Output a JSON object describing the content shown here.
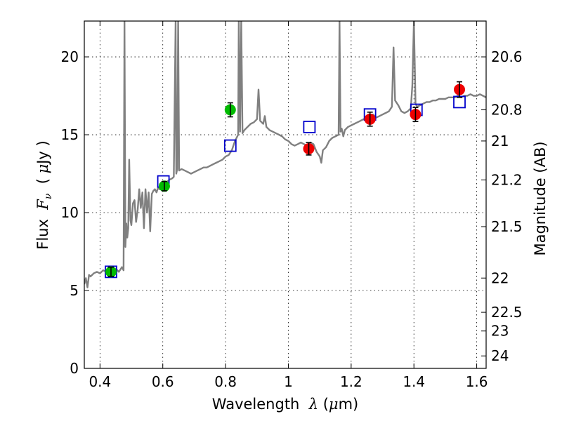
{
  "chart_data": {
    "type": "scatter",
    "title": "",
    "xlabel": "Wavelength  λ (μm)",
    "xlabel_parts": [
      "Wavelength  ",
      "λ",
      " (",
      "μ",
      "m)"
    ],
    "ylabel": "Flux  F_ν  ( μJy )",
    "ylabel_parts": [
      "Flux  ",
      "F",
      "ν",
      "  ( ",
      "μ",
      "Jy )"
    ],
    "ylabel_right": "Magnitude (AB)",
    "xlim": [
      0.35,
      1.63
    ],
    "ylim": [
      0,
      22.3
    ],
    "x_ticks": [
      0.4,
      0.6,
      0.8,
      1.0,
      1.2,
      1.4,
      1.6
    ],
    "x_tick_labels": [
      "0.4",
      "0.6",
      "0.8",
      "1",
      "1.2",
      "1.4",
      "1.6"
    ],
    "y_ticks": [
      0,
      5,
      10,
      15,
      20
    ],
    "y_tick_labels": [
      "0",
      "5",
      "10",
      "15",
      "20"
    ],
    "right_ticks": [
      {
        "label": "20.6",
        "flux": 20.0
      },
      {
        "label": "20.8",
        "flux": 16.6
      },
      {
        "label": "21",
        "flux": 14.6
      },
      {
        "label": "21.2",
        "flux": 12.1
      },
      {
        "label": "21.5",
        "flux": 9.1
      },
      {
        "label": "22",
        "flux": 5.8
      },
      {
        "label": "22.5",
        "flux": 3.6
      },
      {
        "label": "23",
        "flux": 2.4
      },
      {
        "label": "24",
        "flux": 0.8
      }
    ],
    "grid": true,
    "colors": {
      "model": "#808080",
      "model_photometry": "#0000cc",
      "optical_points": "#00bb00",
      "nir_points": "#ee0000",
      "error_bar": "#000000"
    },
    "series": [
      {
        "kind": "line",
        "points": [
          [
            0.35,
            5.4
          ],
          [
            0.355,
            5.8
          ],
          [
            0.36,
            5.2
          ],
          [
            0.365,
            6.0
          ],
          [
            0.37,
            5.9
          ],
          [
            0.38,
            6.1
          ],
          [
            0.39,
            6.2
          ],
          [
            0.4,
            6.1
          ],
          [
            0.41,
            6.3
          ],
          [
            0.42,
            6.2
          ],
          [
            0.43,
            6.4
          ],
          [
            0.44,
            6.3
          ],
          [
            0.45,
            6.4
          ],
          [
            0.46,
            6.2
          ],
          [
            0.47,
            6.5
          ],
          [
            0.475,
            6.3
          ],
          [
            0.478,
            22.3
          ],
          [
            0.481,
            7.8
          ],
          [
            0.484,
            9.3
          ],
          [
            0.487,
            8.4
          ],
          [
            0.49,
            9.0
          ],
          [
            0.493,
            13.4
          ],
          [
            0.497,
            9.5
          ],
          [
            0.5,
            9.2
          ],
          [
            0.505,
            10.6
          ],
          [
            0.51,
            10.8
          ],
          [
            0.515,
            9.4
          ],
          [
            0.52,
            10.2
          ],
          [
            0.525,
            11.5
          ],
          [
            0.53,
            10.3
          ],
          [
            0.535,
            11.3
          ],
          [
            0.54,
            9.0
          ],
          [
            0.545,
            11.5
          ],
          [
            0.55,
            10.0
          ],
          [
            0.555,
            11.3
          ],
          [
            0.56,
            8.8
          ],
          [
            0.565,
            11.2
          ],
          [
            0.57,
            11.4
          ],
          [
            0.575,
            11.5
          ],
          [
            0.58,
            11.3
          ],
          [
            0.585,
            11.6
          ],
          [
            0.59,
            11.5
          ],
          [
            0.6,
            11.8
          ],
          [
            0.61,
            11.9
          ],
          [
            0.62,
            12.1
          ],
          [
            0.63,
            12.2
          ],
          [
            0.635,
            12.3
          ],
          [
            0.641,
            22.3
          ],
          [
            0.643,
            12.5
          ],
          [
            0.646,
            12.8
          ],
          [
            0.649,
            22.3
          ],
          [
            0.652,
            12.7
          ],
          [
            0.66,
            12.8
          ],
          [
            0.67,
            12.7
          ],
          [
            0.68,
            12.6
          ],
          [
            0.69,
            12.5
          ],
          [
            0.7,
            12.6
          ],
          [
            0.71,
            12.7
          ],
          [
            0.72,
            12.8
          ],
          [
            0.73,
            12.9
          ],
          [
            0.74,
            12.9
          ],
          [
            0.75,
            13.0
          ],
          [
            0.76,
            13.1
          ],
          [
            0.77,
            13.2
          ],
          [
            0.78,
            13.3
          ],
          [
            0.79,
            13.4
          ],
          [
            0.8,
            13.6
          ],
          [
            0.81,
            13.7
          ],
          [
            0.82,
            14.0
          ],
          [
            0.83,
            14.6
          ],
          [
            0.84,
            15.0
          ],
          [
            0.842,
            22.3
          ],
          [
            0.846,
            15.2
          ],
          [
            0.85,
            22.3
          ],
          [
            0.854,
            15.1
          ],
          [
            0.86,
            15.3
          ],
          [
            0.87,
            15.5
          ],
          [
            0.88,
            15.7
          ],
          [
            0.89,
            15.8
          ],
          [
            0.9,
            16.0
          ],
          [
            0.905,
            17.9
          ],
          [
            0.91,
            15.9
          ],
          [
            0.92,
            15.7
          ],
          [
            0.925,
            16.2
          ],
          [
            0.93,
            15.5
          ],
          [
            0.94,
            15.3
          ],
          [
            0.95,
            15.2
          ],
          [
            0.96,
            15.1
          ],
          [
            0.97,
            15.0
          ],
          [
            0.98,
            14.9
          ],
          [
            0.99,
            14.7
          ],
          [
            1.0,
            14.6
          ],
          [
            1.01,
            14.4
          ],
          [
            1.02,
            14.3
          ],
          [
            1.03,
            14.4
          ],
          [
            1.04,
            14.5
          ],
          [
            1.05,
            14.4
          ],
          [
            1.06,
            14.3
          ],
          [
            1.07,
            14.5
          ],
          [
            1.08,
            14.4
          ],
          [
            1.09,
            13.9
          ],
          [
            1.1,
            13.6
          ],
          [
            1.105,
            13.2
          ],
          [
            1.11,
            14.0
          ],
          [
            1.12,
            14.2
          ],
          [
            1.13,
            14.6
          ],
          [
            1.14,
            14.8
          ],
          [
            1.15,
            14.9
          ],
          [
            1.16,
            15.0
          ],
          [
            1.163,
            22.3
          ],
          [
            1.166,
            15.2
          ],
          [
            1.17,
            15.4
          ],
          [
            1.175,
            14.9
          ],
          [
            1.18,
            15.3
          ],
          [
            1.19,
            15.5
          ],
          [
            1.2,
            15.6
          ],
          [
            1.21,
            15.7
          ],
          [
            1.22,
            15.8
          ],
          [
            1.23,
            15.9
          ],
          [
            1.24,
            16.0
          ],
          [
            1.25,
            16.1
          ],
          [
            1.26,
            16.3
          ],
          [
            1.27,
            16.3
          ],
          [
            1.28,
            16.1
          ],
          [
            1.29,
            16.2
          ],
          [
            1.3,
            16.3
          ],
          [
            1.31,
            16.4
          ],
          [
            1.32,
            16.5
          ],
          [
            1.33,
            16.8
          ],
          [
            1.335,
            20.6
          ],
          [
            1.34,
            17.2
          ],
          [
            1.35,
            16.9
          ],
          [
            1.36,
            16.5
          ],
          [
            1.37,
            16.4
          ],
          [
            1.38,
            16.5
          ],
          [
            1.39,
            16.7
          ],
          [
            1.395,
            18.2
          ],
          [
            1.4,
            22.3
          ],
          [
            1.405,
            17.0
          ],
          [
            1.41,
            16.8
          ],
          [
            1.42,
            16.9
          ],
          [
            1.43,
            17.0
          ],
          [
            1.44,
            17.1
          ],
          [
            1.45,
            17.1
          ],
          [
            1.46,
            17.2
          ],
          [
            1.47,
            17.2
          ],
          [
            1.48,
            17.3
          ],
          [
            1.49,
            17.3
          ],
          [
            1.5,
            17.3
          ],
          [
            1.51,
            17.4
          ],
          [
            1.52,
            17.4
          ],
          [
            1.53,
            17.4
          ],
          [
            1.54,
            17.5
          ],
          [
            1.55,
            17.4
          ],
          [
            1.56,
            17.5
          ],
          [
            1.57,
            17.5
          ],
          [
            1.58,
            17.6
          ],
          [
            1.59,
            17.5
          ],
          [
            1.6,
            17.5
          ],
          [
            1.61,
            17.6
          ],
          [
            1.62,
            17.5
          ],
          [
            1.63,
            17.4
          ]
        ]
      },
      {
        "kind": "open-square",
        "points": [
          [
            0.435,
            6.2
          ],
          [
            0.602,
            12.0
          ],
          [
            0.815,
            14.3
          ],
          [
            1.067,
            15.5
          ],
          [
            1.26,
            16.3
          ],
          [
            1.408,
            16.6
          ],
          [
            1.545,
            17.1
          ]
        ]
      },
      {
        "kind": "filled-circle",
        "points": [
          {
            "x": 0.435,
            "y": 6.2,
            "err": 0.3,
            "color": "optical_points"
          },
          {
            "x": 0.605,
            "y": 11.7,
            "err": 0.3,
            "color": "optical_points"
          },
          {
            "x": 0.815,
            "y": 16.6,
            "err": 0.45,
            "color": "optical_points"
          },
          {
            "x": 1.065,
            "y": 14.1,
            "err": 0.4,
            "color": "nir_points"
          },
          {
            "x": 1.26,
            "y": 16.0,
            "err": 0.45,
            "color": "nir_points"
          },
          {
            "x": 1.405,
            "y": 16.3,
            "err": 0.45,
            "color": "nir_points"
          },
          {
            "x": 1.545,
            "y": 17.9,
            "err": 0.5,
            "color": "nir_points"
          }
        ]
      }
    ]
  }
}
